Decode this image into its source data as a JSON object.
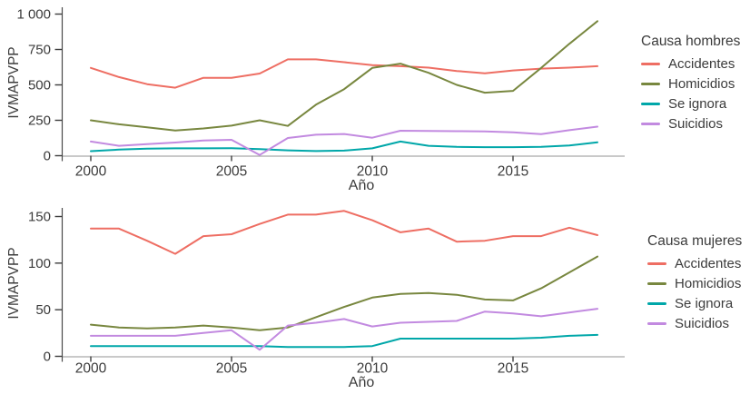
{
  "chart_data": [
    {
      "type": "line",
      "legend_title": "Causa hombres",
      "xlabel": "Año",
      "ylabel": "IVMAPVPP",
      "x": [
        2000,
        2001,
        2002,
        2003,
        2004,
        2005,
        2006,
        2007,
        2008,
        2009,
        2010,
        2011,
        2012,
        2013,
        2014,
        2015,
        2016,
        2017,
        2018
      ],
      "xticks": [
        2000,
        2005,
        2010,
        2015
      ],
      "ytick_values": [
        0,
        250,
        500,
        750,
        1000
      ],
      "ytick_labels": [
        "0",
        "250",
        "500",
        "750",
        "1 000"
      ],
      "ylim": [
        0,
        1000
      ],
      "grid": false,
      "legend_position": "right",
      "series": [
        {
          "name": "Accidentes",
          "color": "#ee6e63",
          "values": [
            620,
            555,
            505,
            480,
            550,
            550,
            580,
            680,
            680,
            660,
            640,
            632,
            622,
            598,
            582,
            602,
            615,
            622,
            632
          ]
        },
        {
          "name": "Homicidios",
          "color": "#78873f",
          "values": [
            250,
            222,
            200,
            178,
            192,
            212,
            250,
            210,
            360,
            470,
            620,
            650,
            585,
            500,
            445,
            458,
            620,
            790,
            950
          ]
        },
        {
          "name": "Se ignora",
          "color": "#00a7a9",
          "values": [
            32,
            43,
            50,
            52,
            52,
            53,
            47,
            38,
            33,
            36,
            52,
            100,
            70,
            62,
            60,
            60,
            62,
            72,
            95
          ]
        },
        {
          "name": "Suicidios",
          "color": "#c28ae0",
          "values": [
            100,
            70,
            82,
            93,
            107,
            112,
            5,
            125,
            148,
            153,
            127,
            176,
            175,
            173,
            172,
            165,
            152,
            180,
            205
          ]
        }
      ]
    },
    {
      "type": "line",
      "legend_title": "Causa mujeres",
      "xlabel": "Año",
      "ylabel": "IVMAPVPP",
      "x": [
        2000,
        2001,
        2002,
        2003,
        2004,
        2005,
        2006,
        2007,
        2008,
        2009,
        2010,
        2011,
        2012,
        2013,
        2014,
        2015,
        2016,
        2017,
        2018
      ],
      "xticks": [
        2000,
        2005,
        2010,
        2015
      ],
      "ytick_values": [
        0,
        50,
        100,
        150
      ],
      "ytick_labels": [
        "0",
        "50",
        "100",
        "150"
      ],
      "ylim": [
        0,
        160
      ],
      "grid": false,
      "legend_position": "right",
      "series": [
        {
          "name": "Accidentes",
          "color": "#ee6e63",
          "values": [
            137,
            137,
            124,
            110,
            129,
            131,
            142,
            152,
            152,
            156,
            146,
            133,
            137,
            123,
            124,
            129,
            129,
            138,
            130
          ]
        },
        {
          "name": "Homicidios",
          "color": "#78873f",
          "values": [
            34,
            31,
            30,
            31,
            33,
            31,
            28,
            31,
            42,
            53,
            63,
            67,
            68,
            66,
            61,
            60,
            73,
            90,
            107
          ]
        },
        {
          "name": "Se ignora",
          "color": "#00a7a9",
          "values": [
            11,
            11,
            11,
            11,
            11,
            11,
            11,
            10,
            10,
            10,
            11,
            19,
            19,
            19,
            19,
            19,
            20,
            22,
            23
          ]
        },
        {
          "name": "Suicidios",
          "color": "#c28ae0",
          "values": [
            22,
            22,
            22,
            22,
            25,
            28,
            7,
            33,
            36,
            40,
            32,
            36,
            37,
            38,
            48,
            46,
            43,
            47,
            51
          ]
        }
      ]
    }
  ],
  "colors": {
    "background": "#ffffff",
    "text": "#3b3b3b",
    "x_axis_line": "#a9a9a9",
    "y_axis_line": "#4a4a4a",
    "tick": "#3d3d3d"
  }
}
